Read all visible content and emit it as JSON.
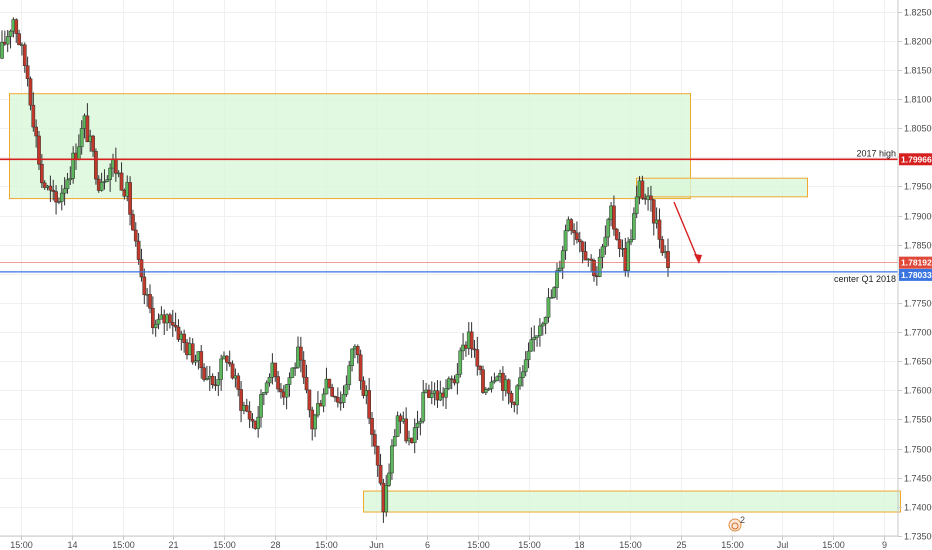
{
  "colors": {
    "background": "#ffffff",
    "grid": "#eef0f3",
    "axis": "#c8c8c8",
    "bull": "#5cb85c",
    "bear": "#c0392b",
    "wick": "#2f2f2f",
    "zone_fill": "#d9f7d9",
    "zone_stroke": "#f0a830",
    "high_line": "#d62020",
    "center_line": "#3a75e0",
    "last_price": "#e0483a",
    "arrow": "#d62020"
  },
  "y_axis": {
    "ticks": [
      "1.82500",
      "1.82000",
      "1.81500",
      "1.81000",
      "1.80500",
      "1.80000",
      "1.79500",
      "1.79000",
      "1.78500",
      "1.78000",
      "1.77500",
      "1.77000",
      "1.76500",
      "1.76000",
      "1.75500",
      "1.75000",
      "1.74500",
      "1.74000",
      "1.73500"
    ]
  },
  "x_axis": {
    "ticks": [
      "15:00",
      "14",
      "15:00",
      "21",
      "15:00",
      "28",
      "15:00",
      "Jun",
      "6",
      "15:00",
      "15:00",
      "18",
      "15:00",
      "25",
      "15:00",
      "Jul",
      "15:00",
      "9"
    ]
  },
  "lines": {
    "high": {
      "label": "2017 high",
      "price": 1.79966,
      "price_label": "1.79966"
    },
    "center": {
      "label": "center Q1 2018",
      "price": 1.78033,
      "price_label": "1.78033"
    },
    "last": {
      "price": 1.78192,
      "price_label": "1.78192"
    }
  },
  "zones": [
    {
      "name": "upper",
      "top": 1.811,
      "bottom": 1.793
    },
    {
      "name": "small",
      "top": 1.7965,
      "bottom": 1.7933
    },
    {
      "name": "lower",
      "top": 1.7428,
      "bottom": 1.7392
    }
  ],
  "icons": {
    "event": "event-marker-icon",
    "event_count": "2"
  },
  "chart_data": {
    "type": "candlestick",
    "symbol_scale": "price",
    "ylim": [
      1.735,
      1.827
    ],
    "grid": true,
    "anchors": [
      1.817,
      1.824,
      1.814,
      1.796,
      1.792,
      1.798,
      1.806,
      1.796,
      1.799,
      1.794,
      1.778,
      1.771,
      1.773,
      1.768,
      1.765,
      1.761,
      1.766,
      1.758,
      1.754,
      1.764,
      1.76,
      1.766,
      1.754,
      1.762,
      1.758,
      1.768,
      1.756,
      1.74,
      1.756,
      1.75,
      1.76,
      1.759,
      1.762,
      1.77,
      1.76,
      1.764,
      1.758,
      1.764,
      1.772,
      1.777,
      1.79,
      1.785,
      1.78,
      1.79,
      1.782,
      1.795,
      1.79,
      1.782
    ]
  }
}
